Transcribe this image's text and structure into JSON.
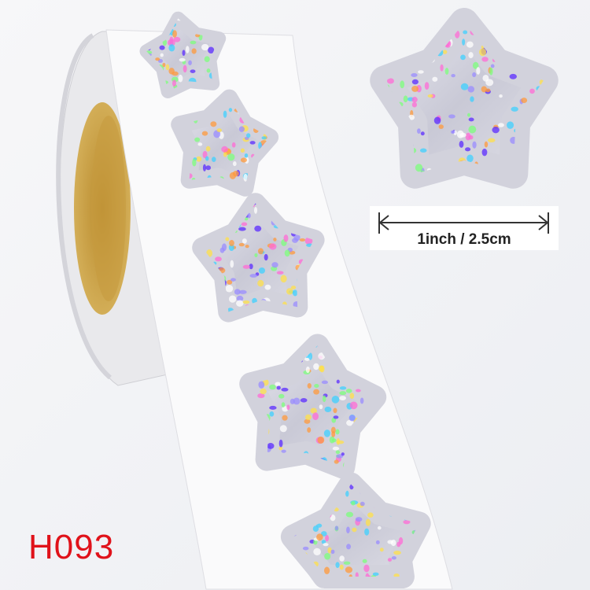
{
  "product": {
    "size_label": "1inch / 2.5cm",
    "code_label": "H093"
  },
  "colors": {
    "code_text": "#e0121a",
    "core": "#c9a24a",
    "silver": "#d9d9e2"
  },
  "icons": [
    "double-arrow-dimension-icon",
    "star-sticker-icon"
  ]
}
